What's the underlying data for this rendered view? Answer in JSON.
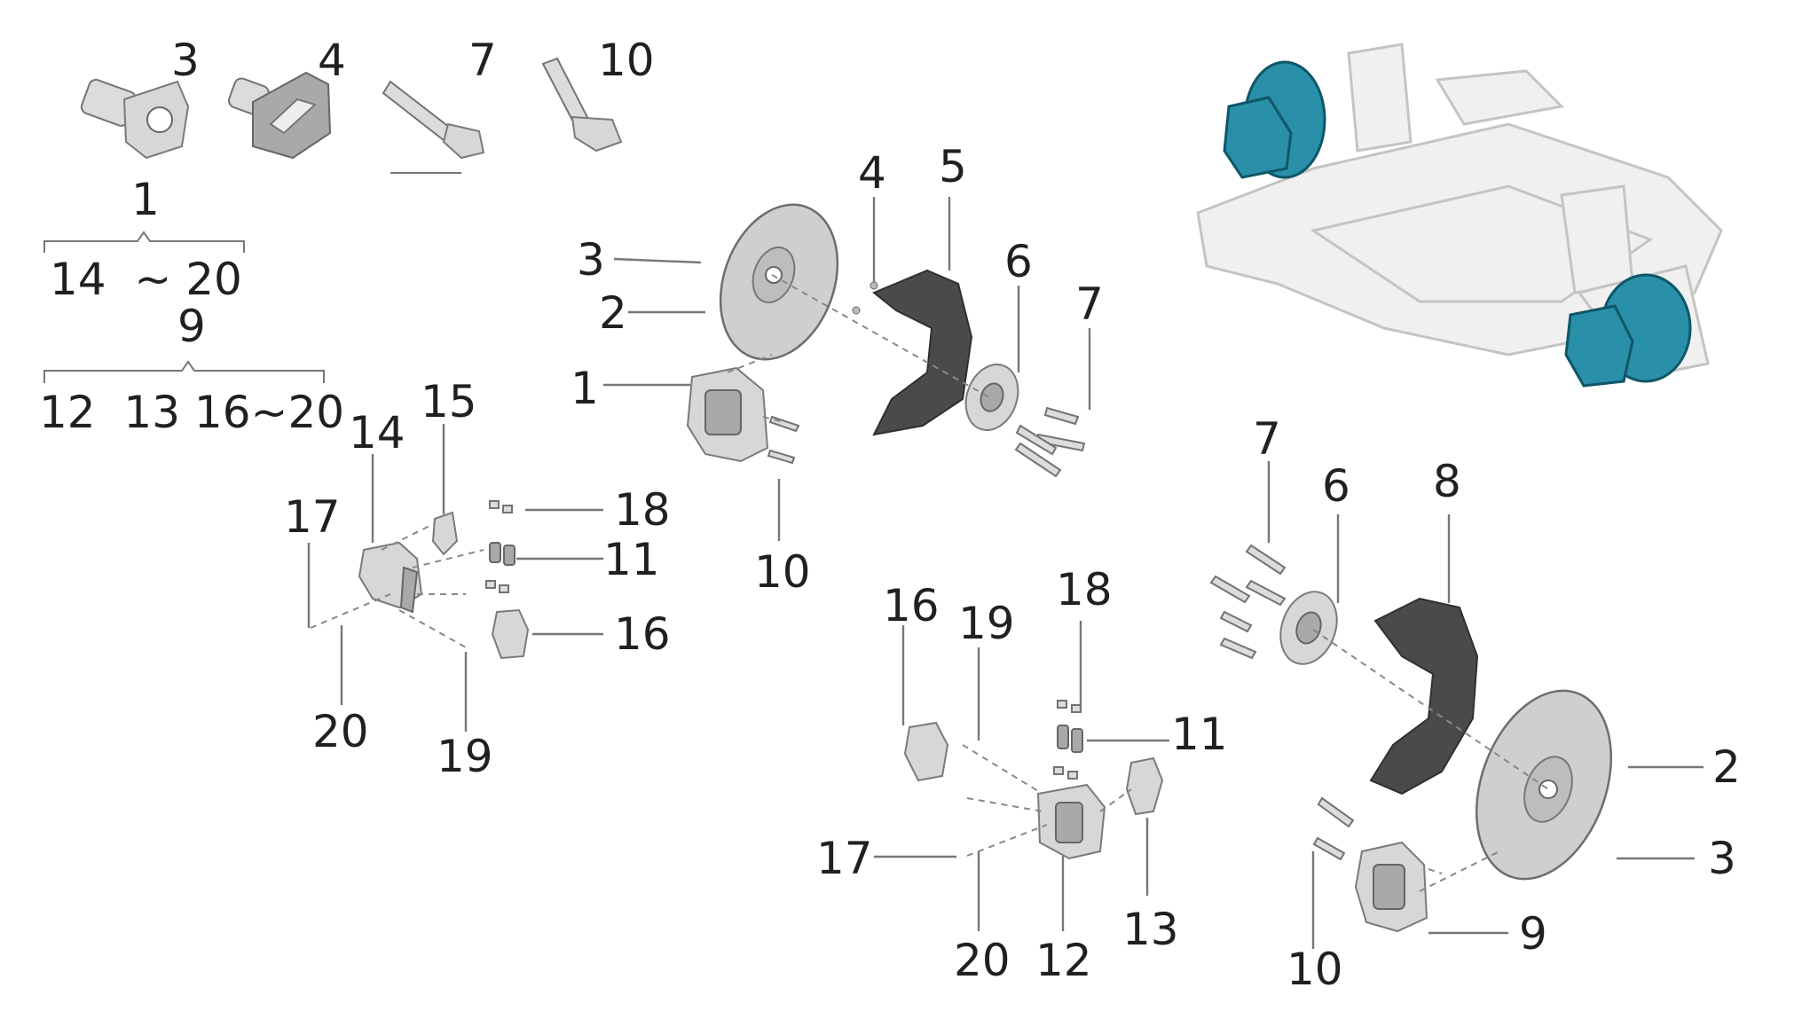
{
  "callouts": {
    "legend_3": "3",
    "legend_4": "4",
    "legend_7": "7",
    "legend_10": "10",
    "legend_1": "1",
    "legend_range_a": "14  ~ 20",
    "legend_9": "9",
    "legend_range_b": "12  13 16~20",
    "front_4": "4",
    "front_5": "5",
    "front_3": "3",
    "front_2": "2",
    "front_6": "6",
    "front_7": "7",
    "front_1": "1",
    "front_10": "10",
    "lcal_15": "15",
    "lcal_14": "14",
    "lcal_17": "17",
    "lcal_18": "18",
    "lcal_11": "11",
    "lcal_16": "16",
    "lcal_20": "20",
    "lcal_19": "19",
    "rcal_16": "16",
    "rcal_19": "19",
    "rcal_18": "18",
    "rcal_11": "11",
    "rcal_17": "17",
    "rcal_13": "13",
    "rcal_20": "20",
    "rcal_12": "12",
    "rear_7": "7",
    "rear_6": "6",
    "rear_8": "8",
    "rear_2": "2",
    "rear_3": "3",
    "rear_9": "9",
    "rear_10": "10"
  },
  "colors": {
    "text": "#231f20",
    "highlight_brake": "#2a8fa8",
    "subframe": "#f0f0f0",
    "shield": "#4a4a4a"
  }
}
